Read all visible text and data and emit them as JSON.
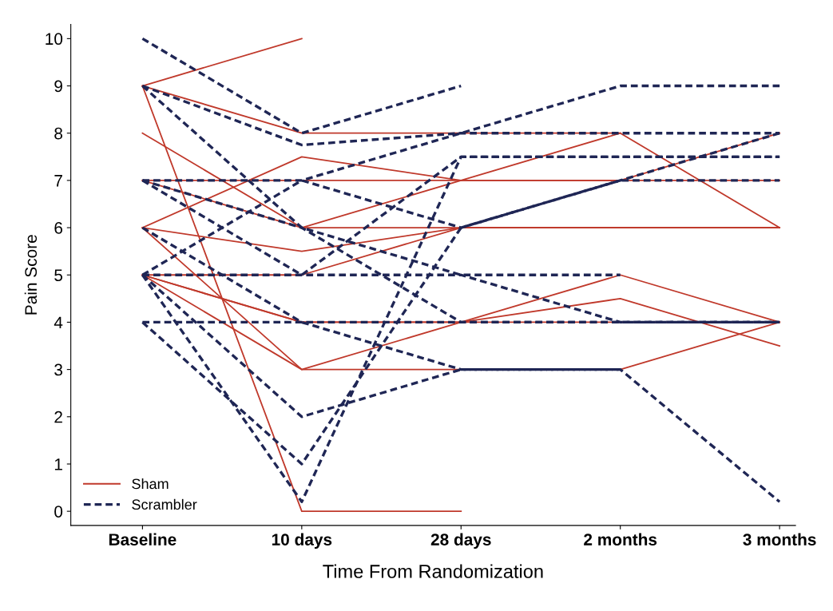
{
  "chart_data": {
    "type": "line",
    "xlabel": "Time From Randomization",
    "ylabel": "Pain Score",
    "categories": [
      "Baseline",
      "10 days",
      "28 days",
      "2 months",
      "3 months"
    ],
    "ylim": [
      -0.3,
      10.3
    ],
    "yticks": [
      0,
      1,
      2,
      3,
      4,
      5,
      6,
      7,
      8,
      9,
      10
    ],
    "grid": false,
    "legend": "bottom left",
    "marker": "none",
    "series": [
      {
        "name": "Sham",
        "color": "#c0392b",
        "line_style": "solid",
        "values": [
          9,
          10,
          null,
          null,
          null
        ]
      },
      {
        "color": "#c0392b",
        "line_style": "solid",
        "values": [
          9,
          0,
          0,
          null,
          null
        ]
      },
      {
        "color": "#c0392b",
        "line_style": "solid",
        "values": [
          9,
          8,
          8,
          8,
          null
        ]
      },
      {
        "color": "#c0392b",
        "line_style": "solid",
        "values": [
          8,
          6,
          7,
          7,
          8
        ]
      },
      {
        "color": "#c0392b",
        "line_style": "solid",
        "values": [
          7,
          7,
          7,
          7,
          7
        ]
      },
      {
        "color": "#c0392b",
        "line_style": "solid",
        "values": [
          7,
          6,
          6,
          6,
          6
        ]
      },
      {
        "color": "#c0392b",
        "line_style": "solid",
        "values": [
          6,
          7.5,
          7,
          8,
          6
        ]
      },
      {
        "color": "#c0392b",
        "line_style": "solid",
        "values": [
          6,
          5.5,
          6,
          6,
          6
        ]
      },
      {
        "color": "#c0392b",
        "line_style": "solid",
        "values": [
          6,
          3,
          4,
          5,
          4
        ]
      },
      {
        "color": "#c0392b",
        "line_style": "solid",
        "values": [
          5,
          5,
          6,
          6,
          6
        ]
      },
      {
        "color": "#c0392b",
        "line_style": "solid",
        "values": [
          5,
          4,
          4,
          4.5,
          3.5
        ]
      },
      {
        "color": "#c0392b",
        "line_style": "solid",
        "values": [
          5,
          4,
          4,
          4,
          4
        ]
      },
      {
        "color": "#c0392b",
        "line_style": "solid",
        "values": [
          5,
          3,
          3,
          3,
          4
        ]
      },
      {
        "name": "Scrambler",
        "color": "#1f2655",
        "line_style": "dashed",
        "values": [
          10,
          8,
          9,
          null,
          null
        ]
      },
      {
        "color": "#1f2655",
        "line_style": "dashed",
        "values": [
          9,
          7.75,
          8,
          8,
          8
        ]
      },
      {
        "color": "#1f2655",
        "line_style": "dashed",
        "values": [
          9,
          6,
          5,
          5,
          null
        ]
      },
      {
        "color": "#1f2655",
        "line_style": "dashed",
        "values": [
          7,
          5,
          7.5,
          7.5,
          7.5
        ]
      },
      {
        "color": "#1f2655",
        "line_style": "dashed",
        "values": [
          7,
          7,
          8,
          9,
          9
        ]
      },
      {
        "color": "#1f2655",
        "line_style": "dashed",
        "values": [
          5,
          7,
          6,
          7,
          8
        ]
      },
      {
        "color": "#1f2655",
        "line_style": "dashed",
        "values": [
          4,
          4,
          4,
          4,
          4
        ]
      },
      {
        "color": "#1f2655",
        "line_style": "dashed",
        "values": [
          5,
          2,
          3,
          3,
          0.2
        ]
      },
      {
        "color": "#1f2655",
        "line_style": "dashed",
        "values": [
          4,
          1,
          6,
          7,
          7
        ]
      },
      {
        "color": "#1f2655",
        "line_style": "dashed",
        "values": [
          5,
          0.2,
          7.5,
          7.5,
          7.5
        ]
      },
      {
        "color": "#1f2655",
        "line_style": "dashed",
        "values": [
          6,
          4,
          3,
          3,
          null
        ]
      },
      {
        "color": "#1f2655",
        "line_style": "dashed",
        "values": [
          5,
          5,
          5,
          4,
          4
        ]
      },
      {
        "color": "#1f2655",
        "line_style": "dashed",
        "values": [
          7,
          6,
          4,
          4,
          4
        ]
      }
    ]
  }
}
